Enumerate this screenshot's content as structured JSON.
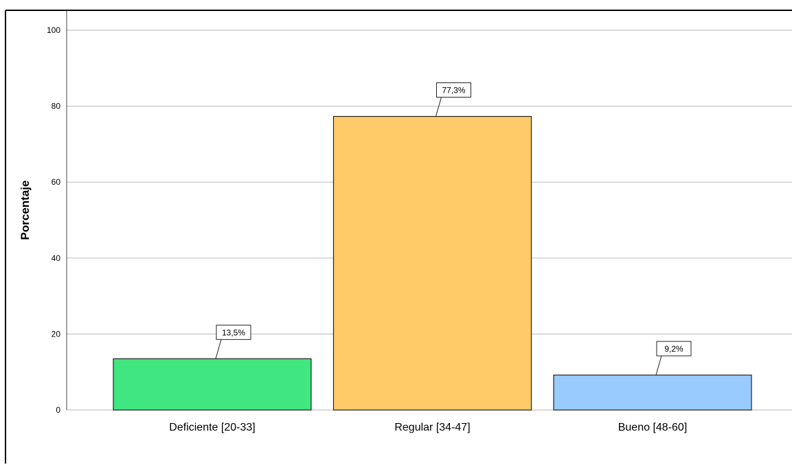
{
  "chart_data": {
    "type": "bar",
    "categories": [
      "Deficiente [20-33]",
      "Regular [34-47]",
      "Bueno [48-60]"
    ],
    "values": [
      13.5,
      77.3,
      9.2
    ],
    "data_labels": [
      "13,5%",
      "77,3%",
      "9,2%"
    ],
    "colors": [
      "#40e67f",
      "#ffcb69",
      "#99cbff"
    ],
    "ylabel": "Porcentaje",
    "xlabel": "",
    "ylim": [
      0,
      100
    ],
    "yticks": [
      0,
      20,
      40,
      60,
      80,
      100
    ],
    "ytick_labels": [
      "0",
      "20",
      "40",
      "60",
      "80",
      "100"
    ],
    "grid": true,
    "legend": "none"
  }
}
